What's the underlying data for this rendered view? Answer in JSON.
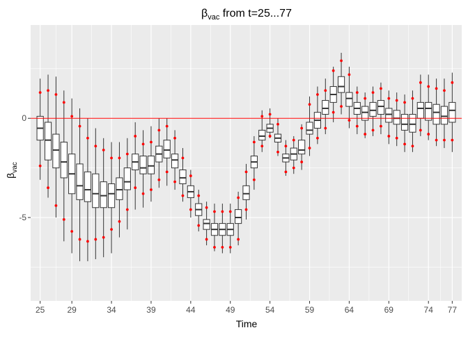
{
  "chart_data": {
    "type": "boxplot",
    "title": {
      "main": "β",
      "sub": "vac",
      "rest": " from t=25...77"
    },
    "xlabel": "Time",
    "ylabel": {
      "main": "β",
      "sub": "vac"
    },
    "x_ticks": [
      "25",
      "29",
      "34",
      "39",
      "44",
      "49",
      "54",
      "59",
      "64",
      "69",
      "74",
      "77"
    ],
    "y_ticks": [
      {
        "value": -5,
        "label": "-5"
      },
      {
        "value": 0,
        "label": "0"
      }
    ],
    "xlim": [
      23.8,
      78.2
    ],
    "ylim": [
      -9.2,
      4.7
    ],
    "reference_line": {
      "y": 0,
      "color": "#ff0000"
    },
    "colors": {
      "panel": "#ebebeb",
      "grid": "#ffffff",
      "box": "#ffffff",
      "outline": "#333333",
      "interval_points": "#ff0000"
    },
    "grid": true,
    "boxes": [
      {
        "t": 25,
        "wlo": -3.1,
        "q1": -1.1,
        "med": -0.5,
        "q3": 0.1,
        "whi": 2.0,
        "plo": -2.4,
        "phi": 1.3
      },
      {
        "t": 26,
        "wlo": -4.0,
        "q1": -2.1,
        "med": -1.1,
        "q3": -0.2,
        "whi": 2.2,
        "plo": -3.5,
        "phi": 1.4
      },
      {
        "t": 27,
        "wlo": -5.0,
        "q1": -2.5,
        "med": -1.6,
        "q3": -0.8,
        "whi": 2.1,
        "plo": -4.4,
        "phi": 1.2
      },
      {
        "t": 28,
        "wlo": -6.2,
        "q1": -3.0,
        "med": -2.2,
        "q3": -1.2,
        "whi": 1.4,
        "plo": -5.1,
        "phi": 0.8
      },
      {
        "t": 29,
        "wlo": -6.8,
        "q1": -3.8,
        "med": -2.8,
        "q3": -1.8,
        "whi": 1.0,
        "plo": -5.7,
        "phi": 0.1
      },
      {
        "t": 30,
        "wlo": -7.2,
        "q1": -4.1,
        "med": -3.4,
        "q3": -2.3,
        "whi": 0.5,
        "plo": -6.1,
        "phi": -0.4
      },
      {
        "t": 31,
        "wlo": -7.2,
        "q1": -4.2,
        "med": -3.6,
        "q3": -2.7,
        "whi": 0.0,
        "plo": -6.2,
        "phi": -1.0
      },
      {
        "t": 32,
        "wlo": -7.1,
        "q1": -4.5,
        "med": -3.8,
        "q3": -2.8,
        "whi": -0.5,
        "plo": -6.1,
        "phi": -1.4
      },
      {
        "t": 33,
        "wlo": -7.0,
        "q1": -4.5,
        "med": -3.9,
        "q3": -3.2,
        "whi": -1.0,
        "plo": -6.0,
        "phi": -1.6
      },
      {
        "t": 34,
        "wlo": -6.8,
        "q1": -4.5,
        "med": -3.8,
        "q3": -3.3,
        "whi": -1.2,
        "plo": -5.6,
        "phi": -2.0
      },
      {
        "t": 35,
        "wlo": -6.0,
        "q1": -4.1,
        "med": -3.6,
        "q3": -3.0,
        "whi": -1.2,
        "plo": -5.2,
        "phi": -2.0
      },
      {
        "t": 36,
        "wlo": -5.6,
        "q1": -3.6,
        "med": -3.2,
        "q3": -2.5,
        "whi": -1.0,
        "plo": -4.6,
        "phi": -1.8
      },
      {
        "t": 37,
        "wlo": -4.6,
        "q1": -2.6,
        "med": -2.2,
        "q3": -1.8,
        "whi": -0.2,
        "plo": -3.5,
        "phi": -0.9
      },
      {
        "t": 38,
        "wlo": -4.5,
        "q1": -2.8,
        "med": -2.5,
        "q3": -1.9,
        "whi": -0.6,
        "plo": -3.8,
        "phi": -1.3
      },
      {
        "t": 39,
        "wlo": -4.2,
        "q1": -2.8,
        "med": -2.4,
        "q3": -1.9,
        "whi": -0.4,
        "plo": -3.6,
        "phi": -1.2
      },
      {
        "t": 40,
        "wlo": -3.5,
        "q1": -2.2,
        "med": -1.8,
        "q3": -1.4,
        "whi": 0.0,
        "plo": -3.1,
        "phi": -0.6
      },
      {
        "t": 41,
        "wlo": -3.4,
        "q1": -2.0,
        "med": -1.6,
        "q3": -1.1,
        "whi": 0.0,
        "plo": -2.7,
        "phi": -0.4
      },
      {
        "t": 42,
        "wlo": -3.6,
        "q1": -2.5,
        "med": -2.1,
        "q3": -1.8,
        "whi": -0.6,
        "plo": -3.2,
        "phi": -1.0
      },
      {
        "t": 43,
        "wlo": -4.2,
        "q1": -3.3,
        "med": -3.0,
        "q3": -2.6,
        "whi": -1.5,
        "plo": -3.9,
        "phi": -2.0
      },
      {
        "t": 44,
        "wlo": -5.0,
        "q1": -4.0,
        "med": -3.7,
        "q3": -3.4,
        "whi": -2.6,
        "plo": -4.6,
        "phi": -2.9
      },
      {
        "t": 45,
        "wlo": -5.7,
        "q1": -4.9,
        "med": -4.6,
        "q3": -4.3,
        "whi": -3.6,
        "plo": -5.4,
        "phi": -3.9
      },
      {
        "t": 46,
        "wlo": -6.4,
        "q1": -5.6,
        "med": -5.3,
        "q3": -5.1,
        "whi": -4.2,
        "plo": -6.1,
        "phi": -4.5
      },
      {
        "t": 47,
        "wlo": -6.7,
        "q1": -5.9,
        "med": -5.6,
        "q3": -5.3,
        "whi": -4.3,
        "plo": -6.5,
        "phi": -4.7
      },
      {
        "t": 48,
        "wlo": -6.8,
        "q1": -5.9,
        "med": -5.6,
        "q3": -5.3,
        "whi": -4.3,
        "plo": -6.5,
        "phi": -4.7
      },
      {
        "t": 49,
        "wlo": -6.8,
        "q1": -5.9,
        "med": -5.6,
        "q3": -5.3,
        "whi": -4.3,
        "plo": -6.5,
        "phi": -4.7
      },
      {
        "t": 50,
        "wlo": -6.4,
        "q1": -5.3,
        "med": -5.0,
        "q3": -4.6,
        "whi": -3.7,
        "plo": -6.1,
        "phi": -4.0
      },
      {
        "t": 51,
        "wlo": -5.1,
        "q1": -4.1,
        "med": -3.8,
        "q3": -3.4,
        "whi": -2.3,
        "plo": -4.6,
        "phi": -2.7
      },
      {
        "t": 52,
        "wlo": -3.6,
        "q1": -2.5,
        "med": -2.2,
        "q3": -1.9,
        "whi": -0.9,
        "plo": -3.1,
        "phi": -1.2
      },
      {
        "t": 53,
        "wlo": -1.7,
        "q1": -1.1,
        "med": -0.9,
        "q3": -0.6,
        "whi": 0.4,
        "plo": -1.4,
        "phi": 0.1
      },
      {
        "t": 54,
        "wlo": -1.0,
        "q1": -0.7,
        "med": -0.5,
        "q3": -0.3,
        "whi": 0.5,
        "plo": -0.9,
        "phi": 0.2
      },
      {
        "t": 55,
        "wlo": -1.9,
        "q1": -1.2,
        "med": -1.0,
        "q3": -0.8,
        "whi": 0.0,
        "plo": -1.7,
        "phi": -0.3
      },
      {
        "t": 56,
        "wlo": -2.9,
        "q1": -2.2,
        "med": -2.0,
        "q3": -1.8,
        "whi": -1.1,
        "plo": -2.7,
        "phi": -1.4
      },
      {
        "t": 57,
        "wlo": -2.8,
        "q1": -2.1,
        "med": -1.8,
        "q3": -1.5,
        "whi": -0.9,
        "plo": -2.5,
        "phi": -1.1
      },
      {
        "t": 58,
        "wlo": -2.6,
        "q1": -1.8,
        "med": -1.6,
        "q3": -1.1,
        "whi": -0.3,
        "plo": -2.2,
        "phi": -0.5
      },
      {
        "t": 59,
        "wlo": -1.9,
        "q1": -0.8,
        "med": -0.6,
        "q3": -0.2,
        "whi": 1.1,
        "plo": -1.5,
        "phi": 0.7
      },
      {
        "t": 60,
        "wlo": -1.3,
        "q1": -0.5,
        "med": -0.1,
        "q3": 0.3,
        "whi": 1.6,
        "plo": -1.0,
        "phi": 1.2
      },
      {
        "t": 61,
        "wlo": -0.8,
        "q1": 0.2,
        "med": 0.5,
        "q3": 0.9,
        "whi": 2.0,
        "plo": -0.5,
        "phi": 1.4
      },
      {
        "t": 62,
        "wlo": -0.2,
        "q1": 0.8,
        "med": 1.2,
        "q3": 1.6,
        "whi": 2.6,
        "plo": 0.3,
        "phi": 2.4
      },
      {
        "t": 63,
        "wlo": 0.2,
        "q1": 1.3,
        "med": 1.6,
        "q3": 2.1,
        "whi": 3.3,
        "plo": 0.6,
        "phi": 2.9
      },
      {
        "t": 64,
        "wlo": -0.5,
        "q1": 0.6,
        "med": 1.0,
        "q3": 1.3,
        "whi": 2.6,
        "plo": -0.1,
        "phi": 2.2
      },
      {
        "t": 65,
        "wlo": -0.8,
        "q1": 0.2,
        "med": 0.5,
        "q3": 0.8,
        "whi": 1.6,
        "plo": -0.4,
        "phi": 1.3
      },
      {
        "t": 66,
        "wlo": -1.0,
        "q1": -0.1,
        "med": 0.3,
        "q3": 0.6,
        "whi": 1.3,
        "plo": -0.8,
        "phi": 1.0
      },
      {
        "t": 67,
        "wlo": -0.9,
        "q1": 0.1,
        "med": 0.4,
        "q3": 0.8,
        "whi": 1.6,
        "plo": -0.6,
        "phi": 1.3
      },
      {
        "t": 68,
        "wlo": -0.8,
        "q1": 0.2,
        "med": 0.6,
        "q3": 0.9,
        "whi": 1.8,
        "plo": -0.4,
        "phi": 1.5
      },
      {
        "t": 69,
        "wlo": -1.3,
        "q1": -0.2,
        "med": 0.2,
        "q3": 0.5,
        "whi": 1.4,
        "plo": -0.9,
        "phi": 1.0
      },
      {
        "t": 70,
        "wlo": -1.4,
        "q1": -0.3,
        "med": 0.0,
        "q3": 0.4,
        "whi": 1.3,
        "plo": -1.0,
        "phi": 0.9
      },
      {
        "t": 71,
        "wlo": -1.7,
        "q1": -0.6,
        "med": -0.3,
        "q3": 0.2,
        "whi": 1.2,
        "plo": -1.3,
        "phi": 0.8
      },
      {
        "t": 72,
        "wlo": -1.7,
        "q1": -0.7,
        "med": -0.3,
        "q3": 0.2,
        "whi": 1.4,
        "plo": -1.4,
        "phi": 1.0
      },
      {
        "t": 73,
        "wlo": -0.9,
        "q1": 0.0,
        "med": 0.5,
        "q3": 0.8,
        "whi": 2.2,
        "plo": -0.6,
        "phi": 1.8
      },
      {
        "t": 74,
        "wlo": -1.1,
        "q1": -0.1,
        "med": 0.5,
        "q3": 0.8,
        "whi": 2.2,
        "plo": -0.8,
        "phi": 1.6
      },
      {
        "t": 75,
        "wlo": -1.4,
        "q1": -0.3,
        "med": 0.3,
        "q3": 0.7,
        "whi": 2.0,
        "plo": -1.1,
        "phi": 1.5
      },
      {
        "t": 76,
        "wlo": -1.5,
        "q1": -0.3,
        "med": 0.1,
        "q3": 0.6,
        "whi": 2.0,
        "plo": -1.1,
        "phi": 1.4
      },
      {
        "t": 77,
        "wlo": -1.7,
        "q1": -0.2,
        "med": 0.4,
        "q3": 0.8,
        "whi": 2.3,
        "plo": -1.1,
        "phi": 1.8
      }
    ]
  }
}
